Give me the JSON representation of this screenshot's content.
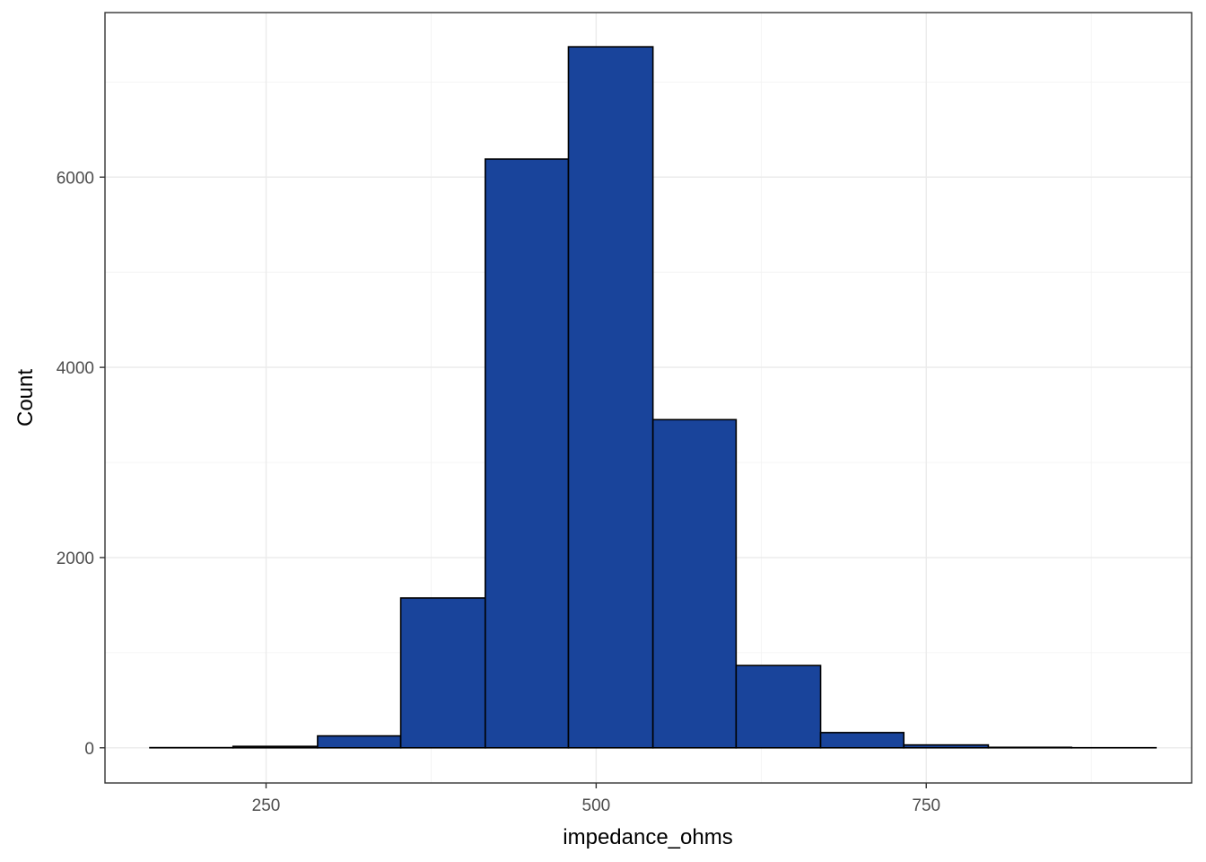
{
  "chart_data": {
    "type": "histogram",
    "xlabel": "impedance_ohms",
    "ylabel": "Count",
    "x_ticks": [
      250,
      500,
      750
    ],
    "y_ticks": [
      0,
      2000,
      4000,
      6000
    ],
    "xlim": [
      128,
      951
    ],
    "ylim": [
      -370,
      7730
    ],
    "bins": [
      {
        "x_start": 162,
        "x_end": 225,
        "count": 2
      },
      {
        "x_start": 225,
        "x_end": 289,
        "count": 15
      },
      {
        "x_start": 289,
        "x_end": 352,
        "count": 125
      },
      {
        "x_start": 352,
        "x_end": 416,
        "count": 1575
      },
      {
        "x_start": 416,
        "x_end": 479,
        "count": 6190
      },
      {
        "x_start": 479,
        "x_end": 543,
        "count": 7370
      },
      {
        "x_start": 543,
        "x_end": 606,
        "count": 3450
      },
      {
        "x_start": 606,
        "x_end": 670,
        "count": 865
      },
      {
        "x_start": 670,
        "x_end": 733,
        "count": 160
      },
      {
        "x_start": 733,
        "x_end": 797,
        "count": 30
      },
      {
        "x_start": 797,
        "x_end": 860,
        "count": 5
      },
      {
        "x_start": 860,
        "x_end": 924,
        "count": 1
      }
    ],
    "bar_fill": "#19449B",
    "bar_outline": "#000000",
    "grid": true,
    "legend": "none",
    "theme": "bw"
  }
}
